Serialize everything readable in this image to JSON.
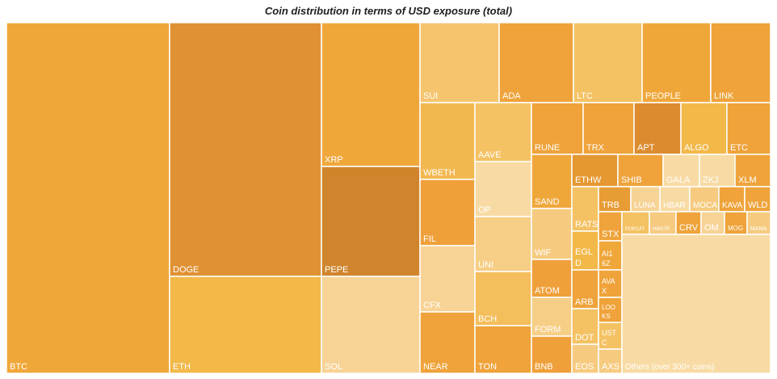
{
  "chart_data": {
    "type": "treemap",
    "title": "Coin distribution in terms of USD exposure (total)",
    "colors": {
      "border": "#ffffff",
      "label": "#ffffff"
    },
    "tiles": [
      {
        "label": "BTC",
        "color": "#F0A73A"
      },
      {
        "label": "DOGE",
        "color": "#E09133"
      },
      {
        "label": "ETH",
        "color": "#F2B848"
      },
      {
        "label": "XRP",
        "color": "#F0A73A"
      },
      {
        "label": "PEPE",
        "color": "#D0852D"
      },
      {
        "label": "SOL",
        "color": "#F7D395"
      },
      {
        "label": "SUI",
        "color": "#F5C56E"
      },
      {
        "label": "ADA",
        "color": "#EFA33A"
      },
      {
        "label": "LTC",
        "color": "#F4C263"
      },
      {
        "label": "PEOPLE",
        "color": "#F0A73A"
      },
      {
        "label": "LINK",
        "color": "#EFA33A"
      },
      {
        "label": "WBETH",
        "color": "#F2B850"
      },
      {
        "label": "FIL",
        "color": "#EFA03A"
      },
      {
        "label": "CFX",
        "color": "#F7D395"
      },
      {
        "label": "NEAR",
        "color": "#EFA33A"
      },
      {
        "label": "AAVE",
        "color": "#F4C263"
      },
      {
        "label": "OP",
        "color": "#F8DBA4"
      },
      {
        "label": "UNI",
        "color": "#F6CE85"
      },
      {
        "label": "BCH",
        "color": "#F4BE5C"
      },
      {
        "label": "TON",
        "color": "#EFA33A"
      },
      {
        "label": "RUNE",
        "color": "#EFA33A"
      },
      {
        "label": "TRX",
        "color": "#EFA33A"
      },
      {
        "label": "APT",
        "color": "#DC8C2F"
      },
      {
        "label": "ALGO",
        "color": "#F2B848"
      },
      {
        "label": "ETC",
        "color": "#EFA33A"
      },
      {
        "label": "SAND",
        "color": "#F0A73A"
      },
      {
        "label": "WIF",
        "color": "#F6CB80"
      },
      {
        "label": "ATOM",
        "color": "#EFA03A"
      },
      {
        "label": "FORM",
        "color": "#F6CE85"
      },
      {
        "label": "BNB",
        "color": "#EFA03A"
      },
      {
        "label": "ETHW",
        "color": "#E59832"
      },
      {
        "label": "SHIB",
        "color": "#EFA33A"
      },
      {
        "label": "GALA",
        "color": "#F8DBA4"
      },
      {
        "label": "ZKJ",
        "color": "#F8DBA4"
      },
      {
        "label": "XLM",
        "color": "#EFA33A"
      },
      {
        "label": "RATS",
        "color": "#F4C263"
      },
      {
        "label": "TRB",
        "color": "#E89C35"
      },
      {
        "label": "LUNA",
        "color": "#F7D395"
      },
      {
        "label": "HBAR",
        "color": "#F8DBA4"
      },
      {
        "label": "MOCA",
        "color": "#F6CB80"
      },
      {
        "label": "KAVA",
        "color": "#EFA33A"
      },
      {
        "label": "WLD",
        "color": "#EFA33A"
      },
      {
        "label": "EGL\nD",
        "color": "#F2B848"
      },
      {
        "label": "STX",
        "color": "#EFA33A"
      },
      {
        "label": "POPCAT",
        "color": "#F4C263"
      },
      {
        "label": "HMSTR",
        "color": "#F6CB80"
      },
      {
        "label": "CRV",
        "color": "#EFA33A"
      },
      {
        "label": "OM",
        "color": "#F7D395"
      },
      {
        "label": "MOG",
        "color": "#EFA33A"
      },
      {
        "label": "MANA",
        "color": "#F6CB80"
      },
      {
        "label": "AI1\n6Z",
        "color": "#F0A73A"
      },
      {
        "label": "AVA\nX",
        "color": "#EFA33A"
      },
      {
        "label": "ARB",
        "color": "#EFA33A"
      },
      {
        "label": "LOO\nKS",
        "color": "#EFA33A"
      },
      {
        "label": "DOT",
        "color": "#F4C263"
      },
      {
        "label": "UST\nC",
        "color": "#F4C263"
      },
      {
        "label": "EOS",
        "color": "#F6CB80"
      },
      {
        "label": "AXS",
        "color": "#F6CB80"
      },
      {
        "label": "Others (over 300+ coins)",
        "color": "#F8DBA4"
      }
    ]
  }
}
